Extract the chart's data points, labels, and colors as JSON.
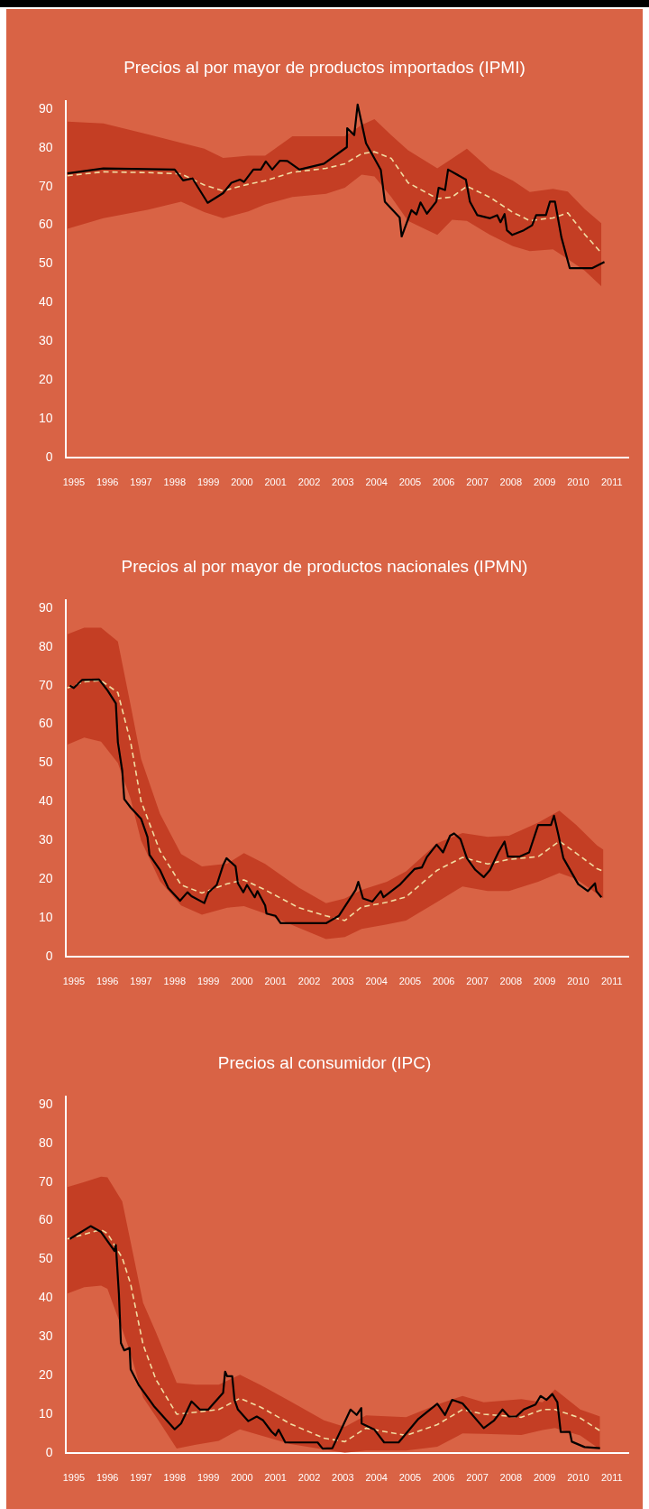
{
  "chart_data": [
    {
      "type": "line",
      "title": "Precios al por mayor de productos importados (IPMI)",
      "xlim": [
        1994.75,
        2011.5
      ],
      "xticks": [
        1995,
        1996,
        1997,
        1998,
        1999,
        2000,
        2001,
        2002,
        2003,
        2004,
        2005,
        2006,
        2007,
        2008,
        2009,
        2010,
        2011
      ],
      "ylim": [
        0,
        92
      ],
      "yticks": [
        0,
        10,
        20,
        30,
        40,
        50,
        60,
        70,
        80,
        90
      ],
      "legend": false,
      "grid": false,
      "marker": "none",
      "series": [
        {
          "type": "line",
          "line_style": "solid",
          "color": "#000000",
          "x": [
            1994.81,
            1995.88,
            1998.0,
            1998.25,
            1998.53,
            1998.98,
            1999.44,
            1999.69,
            1999.94,
            2000.06,
            2000.34,
            2000.56,
            2000.71,
            2000.9,
            2001.13,
            2001.35,
            2001.71,
            2002.44,
            2003.12,
            2003.13,
            2003.34,
            2003.44,
            2003.69,
            2004.13,
            2004.25,
            2004.69,
            2004.75,
            2005.04,
            2005.19,
            2005.31,
            2005.5,
            2005.78,
            2005.85,
            2006.04,
            2006.13,
            2006.66,
            2006.78,
            2007.0,
            2007.38,
            2007.59,
            2007.69,
            2007.81,
            2007.88,
            2008.04,
            2008.38,
            2008.63,
            2008.75,
            2009.04,
            2009.16,
            2009.31,
            2009.5,
            2009.75,
            2010.41,
            2010.78
          ],
          "values": [
            73.4,
            74.7,
            74.4,
            71.6,
            72.1,
            65.8,
            68.3,
            71.0,
            71.8,
            71.2,
            74.4,
            74.4,
            76.5,
            74.4,
            76.7,
            76.6,
            74.4,
            75.9,
            80.2,
            85.1,
            83.3,
            91.2,
            81.2,
            74.3,
            66.1,
            62.0,
            57.1,
            63.9,
            62.8,
            65.9,
            63.0,
            66.1,
            69.7,
            69.1,
            74.4,
            71.8,
            66.1,
            62.6,
            61.8,
            62.6,
            60.8,
            62.9,
            58.7,
            57.5,
            58.7,
            60.0,
            62.6,
            62.6,
            66.1,
            66.1,
            56.9,
            48.9,
            48.9,
            50.5
          ]
        },
        {
          "type": "line",
          "line_style": "dashed",
          "color": "#f2dca2",
          "x": [
            1994.81,
            1995.88,
            1997.19,
            1998.19,
            1998.88,
            1999.44,
            2000.19,
            2000.69,
            2001.5,
            2002.5,
            2003.06,
            2003.56,
            2003.94,
            2004.44,
            2004.94,
            2005.81,
            2006.25,
            2006.69,
            2007.38,
            2008.06,
            2008.56,
            2009.25,
            2009.69,
            2010.19,
            2010.69
          ],
          "values": [
            72.8,
            73.8,
            73.6,
            73.3,
            70.4,
            68.9,
            70.6,
            71.5,
            73.7,
            74.7,
            75.9,
            78.5,
            79.0,
            77.3,
            71.0,
            66.9,
            67.3,
            70.1,
            67.2,
            63.3,
            61.2,
            61.9,
            63.2,
            57.7,
            52.8
          ],
          "upper": [
            86.8,
            86.3,
            83.5,
            81.3,
            79.8,
            77.4,
            78.0,
            78.0,
            83.0,
            83.0,
            83.0,
            85.9,
            87.4,
            83.3,
            79.4,
            74.7,
            77.2,
            79.8,
            74.4,
            71.5,
            68.6,
            69.4,
            68.7,
            64.2,
            60.5
          ],
          "lower": [
            59.1,
            61.8,
            64.0,
            66.1,
            63.4,
            61.8,
            63.6,
            65.4,
            67.3,
            68.1,
            69.7,
            73.1,
            72.6,
            67.3,
            61.1,
            57.5,
            61.4,
            61.1,
            57.5,
            54.6,
            53.3,
            53.8,
            51.3,
            48.3,
            44.2
          ]
        }
      ]
    },
    {
      "type": "line",
      "title": "Precios al por mayor de productos nacionales (IPMN)",
      "xlim": [
        1994.75,
        2011.5
      ],
      "xticks": [
        1995,
        1996,
        1997,
        1998,
        1999,
        2000,
        2001,
        2002,
        2003,
        2004,
        2005,
        2006,
        2007,
        2008,
        2009,
        2010,
        2011
      ],
      "ylim": [
        0,
        92
      ],
      "yticks": [
        0,
        10,
        20,
        30,
        40,
        50,
        60,
        70,
        80,
        90
      ],
      "legend": false,
      "grid": false,
      "marker": "none",
      "series": [
        {
          "type": "line",
          "line_style": "solid",
          "color": "#000000",
          "x": [
            1994.88,
            1995.0,
            1995.25,
            1995.75,
            1996.0,
            1996.25,
            1996.31,
            1996.44,
            1996.5,
            1996.69,
            1997.0,
            1997.19,
            1997.25,
            1997.56,
            1997.81,
            1998.16,
            1998.38,
            1998.5,
            1998.88,
            1999.0,
            1999.25,
            1999.44,
            1999.54,
            1999.81,
            1999.88,
            2000.04,
            2000.15,
            2000.38,
            2000.46,
            2000.69,
            2000.73,
            2001.0,
            2001.15,
            2002.5,
            2002.88,
            2003.38,
            2003.46,
            2003.6,
            2003.88,
            2004.13,
            2004.21,
            2004.69,
            2005.13,
            2005.35,
            2005.5,
            2005.79,
            2005.98,
            2006.19,
            2006.31,
            2006.5,
            2006.69,
            2006.94,
            2007.19,
            2007.38,
            2007.63,
            2007.81,
            2007.91,
            2008.25,
            2008.54,
            2008.81,
            2009.19,
            2009.28,
            2009.41,
            2009.56,
            2010.0,
            2010.29,
            2010.5,
            2010.54,
            2010.69
          ],
          "values": [
            70.0,
            69.4,
            71.5,
            71.6,
            68.8,
            65.4,
            55.4,
            48.0,
            40.7,
            38.5,
            35.6,
            30.9,
            26.3,
            22.4,
            17.7,
            14.4,
            16.6,
            15.6,
            13.8,
            16.5,
            18.5,
            23.6,
            25.4,
            23.3,
            18.9,
            16.6,
            18.5,
            15.3,
            16.9,
            13.2,
            11.1,
            10.5,
            8.6,
            8.6,
            10.5,
            17.2,
            19.3,
            15.0,
            14.2,
            16.9,
            15.3,
            18.5,
            22.6,
            23.0,
            25.7,
            28.9,
            26.9,
            31.2,
            31.8,
            30.3,
            25.4,
            22.4,
            20.5,
            22.4,
            27.0,
            29.7,
            25.8,
            25.8,
            26.9,
            34.0,
            34.0,
            36.4,
            31.5,
            25.4,
            18.7,
            16.9,
            18.9,
            16.9,
            15.3
          ]
        },
        {
          "type": "line",
          "line_style": "dashed",
          "color": "#f2dca2",
          "x": [
            1994.81,
            1995.31,
            1995.81,
            1996.31,
            1996.69,
            1997.0,
            1997.56,
            1998.19,
            1998.81,
            1999.56,
            2000.06,
            2000.69,
            2001.69,
            2002.5,
            2003.06,
            2003.56,
            2004.31,
            2004.88,
            2005.81,
            2006.56,
            2007.31,
            2007.94,
            2008.81,
            2009.44,
            2009.94,
            2010.56,
            2010.75
          ],
          "values": [
            69.4,
            71.0,
            71.3,
            68.2,
            55.4,
            40.1,
            27.3,
            18.5,
            16.4,
            18.8,
            19.8,
            17.2,
            12.6,
            10.5,
            9.3,
            12.8,
            14.0,
            15.4,
            22.3,
            25.6,
            23.9,
            25.1,
            25.8,
            29.8,
            26.7,
            22.7,
            22.0
          ],
          "upper": [
            83.3,
            85.0,
            85.0,
            81.4,
            64.9,
            51.1,
            36.9,
            26.5,
            23.3,
            24.0,
            26.7,
            23.9,
            17.8,
            13.8,
            15.0,
            17.2,
            19.3,
            22.0,
            29.3,
            31.9,
            30.9,
            31.2,
            34.6,
            37.7,
            34.0,
            28.7,
            27.6
          ],
          "lower": [
            54.8,
            56.6,
            55.5,
            50.0,
            40.7,
            30.0,
            19.5,
            13.2,
            10.8,
            12.6,
            13.0,
            11.1,
            7.4,
            4.5,
            5.0,
            7.1,
            8.3,
            9.3,
            14.1,
            18.1,
            16.9,
            16.9,
            19.3,
            21.6,
            20.0,
            16.2,
            15.0
          ]
        }
      ]
    },
    {
      "type": "line",
      "title": "Precios al consumidor (IPC)",
      "xlim": [
        1994.75,
        2011.5
      ],
      "xticks": [
        1995,
        1996,
        1997,
        1998,
        1999,
        2000,
        2001,
        2002,
        2003,
        2004,
        2005,
        2006,
        2007,
        2008,
        2009,
        2010,
        2011
      ],
      "ylim": [
        0,
        92
      ],
      "yticks": [
        0,
        10,
        20,
        30,
        40,
        50,
        60,
        70,
        80,
        90
      ],
      "legend": false,
      "grid": false,
      "marker": "none",
      "series": [
        {
          "type": "line",
          "line_style": "solid",
          "color": "#000000",
          "x": [
            1994.88,
            1995.5,
            1995.81,
            1996.21,
            1996.25,
            1996.34,
            1996.4,
            1996.5,
            1996.66,
            1996.69,
            1996.94,
            1997.25,
            1997.38,
            1998.0,
            1998.19,
            1998.5,
            1998.75,
            1999.0,
            1999.44,
            1999.5,
            1999.56,
            1999.71,
            1999.78,
            1999.88,
            2000.19,
            2000.44,
            2000.63,
            2000.88,
            2001.0,
            2001.09,
            2001.29,
            2002.25,
            2002.4,
            2002.69,
            2003.23,
            2003.41,
            2003.55,
            2003.56,
            2003.94,
            2004.23,
            2004.66,
            2005.25,
            2005.81,
            2006.04,
            2006.25,
            2006.56,
            2007.19,
            2007.5,
            2007.75,
            2007.94,
            2008.16,
            2008.38,
            2008.73,
            2008.88,
            2009.06,
            2009.23,
            2009.38,
            2009.48,
            2009.75,
            2009.81,
            2010.19,
            2010.65
          ],
          "values": [
            55.3,
            58.6,
            57.1,
            52.2,
            53.7,
            41.2,
            28.4,
            26.5,
            27.1,
            21.6,
            17.4,
            13.7,
            12.1,
            6.1,
            7.6,
            13.3,
            11.2,
            11.2,
            15.5,
            21.0,
            19.8,
            19.8,
            13.7,
            11.2,
            8.2,
            9.4,
            8.4,
            5.5,
            4.5,
            6.0,
            2.7,
            2.7,
            1.1,
            1.2,
            11.2,
            9.8,
            11.6,
            7.6,
            6.0,
            2.7,
            2.7,
            8.8,
            12.7,
            9.8,
            13.7,
            12.8,
            6.4,
            8.4,
            11.2,
            9.4,
            9.4,
            11.2,
            12.5,
            14.7,
            13.7,
            15.2,
            13.1,
            5.4,
            5.4,
            2.9,
            1.5,
            1.2
          ]
        },
        {
          "type": "line",
          "line_style": "dashed",
          "color": "#f2dca2",
          "x": [
            1994.81,
            1995.31,
            1995.81,
            1996.0,
            1996.44,
            1996.69,
            1997.06,
            1997.44,
            1998.06,
            1998.63,
            1999.31,
            1999.94,
            2000.56,
            2001.44,
            2002.44,
            2003.06,
            2003.69,
            2004.88,
            2005.81,
            2006.56,
            2007.19,
            2008.31,
            2008.94,
            2009.31,
            2010.06,
            2010.65
          ],
          "values": [
            55.3,
            56.5,
            57.7,
            56.7,
            50.4,
            43.6,
            28.0,
            19.0,
            10.0,
            10.5,
            11.2,
            14.1,
            11.8,
            7.5,
            3.8,
            2.9,
            6.4,
            4.5,
            7.3,
            11.2,
            10.0,
            9.2,
            11.2,
            11.2,
            9.0,
            5.7
          ],
          "upper": [
            68.7,
            70.0,
            71.4,
            71.2,
            65.0,
            54.5,
            38.8,
            31.2,
            18.1,
            17.6,
            17.6,
            20.2,
            17.5,
            13.3,
            8.4,
            6.7,
            9.7,
            9.2,
            12.5,
            14.7,
            13.1,
            13.9,
            13.1,
            16.4,
            11.2,
            9.4
          ],
          "lower": [
            41.2,
            42.8,
            43.2,
            42.4,
            31.9,
            25.7,
            14.3,
            9.4,
            1.1,
            2.1,
            3.1,
            6.1,
            4.5,
            2.3,
            0.9,
            0,
            0.6,
            0.6,
            1.6,
            5.0,
            4.9,
            4.6,
            5.9,
            6.4,
            4.5,
            0.9
          ]
        }
      ]
    }
  ]
}
